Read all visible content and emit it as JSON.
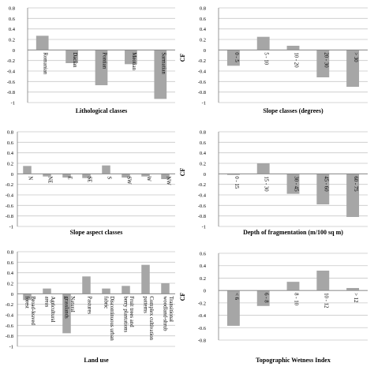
{
  "chart_data": [
    {
      "type": "bar",
      "ylabel": "",
      "xlabel": "Lithological classes",
      "categories": [
        "Romanian",
        "Dacian",
        "Pontian",
        "Meotian",
        "Sarmatian"
      ],
      "values": [
        0.27,
        -0.25,
        -0.67,
        -0.27,
        -0.93
      ],
      "ylim": [
        -1,
        0.8
      ],
      "yticks": [
        "0.8",
        "0.6",
        "0.4",
        "0.2",
        "0",
        "-0.2",
        "-0.4",
        "-0.6",
        "-0.8",
        "-1"
      ],
      "grid": true,
      "label_style": "rotated-in-bar"
    },
    {
      "type": "bar",
      "ylabel": "CF",
      "xlabel": "Slope classes (degrees)",
      "categories": [
        "0 - 5",
        "5 - 10",
        "10 - 20",
        "20 - 30",
        "> 30"
      ],
      "values": [
        -0.3,
        0.25,
        0.08,
        -0.52,
        -0.7
      ],
      "ylim": [
        -1,
        0.8
      ],
      "yticks": [
        "0.8",
        "0.6",
        "0.4",
        "0.2",
        "0",
        "-0.2",
        "-0.4",
        "-0.6",
        "-0.8",
        "-1"
      ],
      "grid": true,
      "label_style": "rotated-below-axis"
    },
    {
      "type": "bar",
      "ylabel": "",
      "xlabel": "Slope aspect classes",
      "categories": [
        "N",
        "NE",
        "E",
        "SE",
        "S",
        "SW",
        "W",
        "NW"
      ],
      "values": [
        0.15,
        -0.05,
        -0.07,
        -0.08,
        0.16,
        -0.07,
        -0.05,
        -0.1
      ],
      "ylim": [
        -1,
        0.8
      ],
      "yticks": [
        "0.8",
        "0.6",
        "0.4",
        "0.2",
        "0",
        "-0.2",
        "-0.4",
        "-0.6",
        "-0.8",
        "-1"
      ],
      "grid": true,
      "label_style": "rotated-below-axis"
    },
    {
      "type": "bar",
      "ylabel": "CF",
      "xlabel": "Depth of fragmentation (m/100 sq m)",
      "categories": [
        "0 - 15",
        "15 - 30",
        "30 - 45",
        "45 - 60",
        "60 - 75"
      ],
      "values": [
        -0.02,
        0.2,
        -0.38,
        -0.58,
        -0.82
      ],
      "ylim": [
        -1,
        0.8
      ],
      "yticks": [
        "0.8",
        "0.6",
        "0.4",
        "0.2",
        "0",
        "-0.2",
        "-0.4",
        "-0.6",
        "-0.8",
        "-1"
      ],
      "grid": true,
      "label_style": "rotated-below-axis"
    },
    {
      "type": "bar",
      "ylabel": "",
      "xlabel": "Land use",
      "categories": [
        "Broad-leaved forest",
        "Agricultural areas",
        "Natural grasslands",
        "Pastures",
        "Discontinuous urban fabric",
        "Fruit trees and berry plantations",
        "Complex cultivation patterns",
        "Transitional woodland-shrub"
      ],
      "values": [
        -0.12,
        0.1,
        -0.75,
        0.33,
        0.1,
        0.15,
        0.55,
        0.2
      ],
      "ylim": [
        -1,
        0.8
      ],
      "yticks": [
        "0.8",
        "0.6",
        "0.4",
        "0.2",
        "0",
        "-0.2",
        "-0.4",
        "-0.6",
        "-0.8",
        "-1"
      ],
      "grid": true,
      "label_style": "rotated-below-axis"
    },
    {
      "type": "bar",
      "ylabel": "CF",
      "xlabel": "Topographic Wetness Index",
      "categories": [
        "< 6",
        "6 - 8",
        "8 - 10",
        "10 - 12",
        "> 12"
      ],
      "values": [
        -0.57,
        -0.25,
        0.14,
        0.32,
        0.04
      ],
      "ylim": [
        -0.8,
        0.6
      ],
      "yticks": [
        "0.6",
        "0.4",
        "0.2",
        "0",
        "-0.2",
        "-0.4",
        "-0.6",
        "-0.8"
      ],
      "grid": true,
      "label_style": "rotated-below-axis"
    }
  ],
  "colors": {
    "bar": "#a6a6a6",
    "grid": "#c8c8c8",
    "axis": "#7f7f7f",
    "text": "#000000"
  }
}
